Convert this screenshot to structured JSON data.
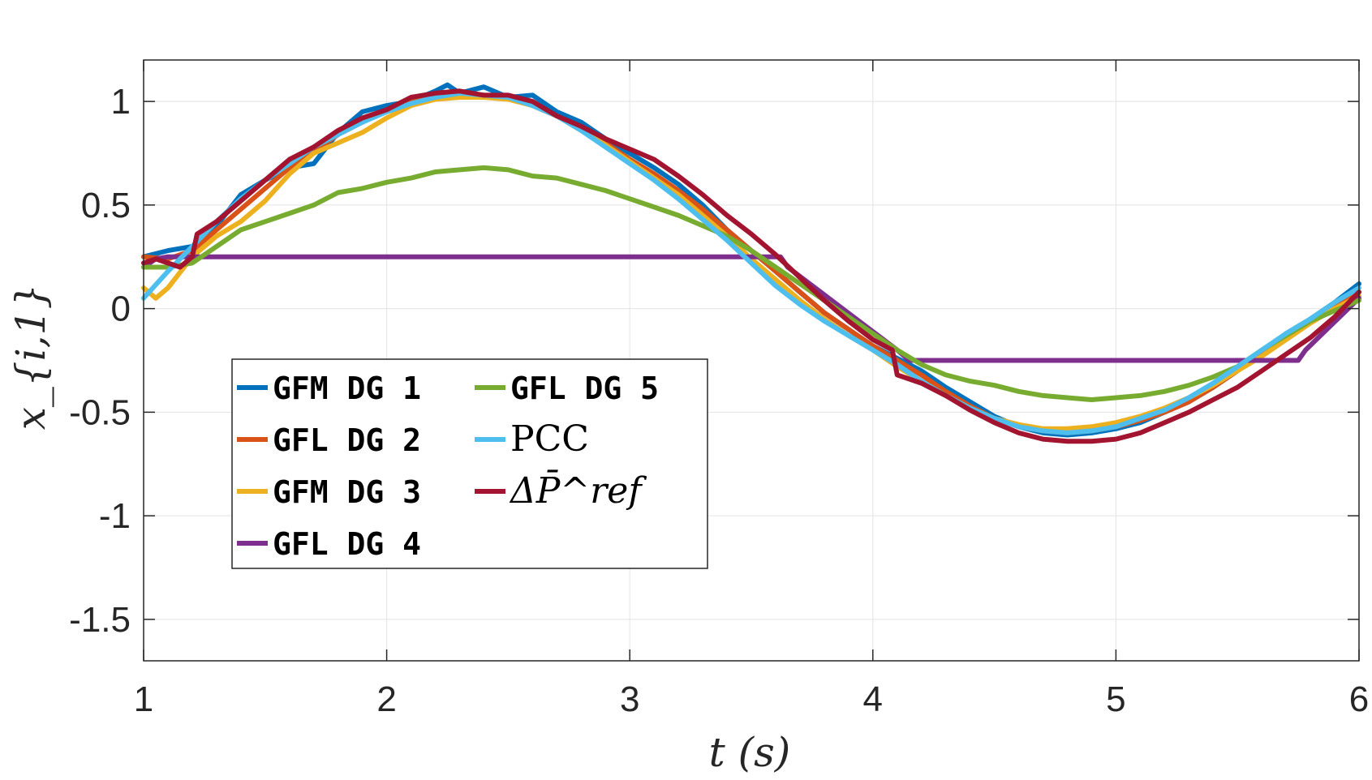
{
  "chart_data": {
    "type": "line",
    "xlabel": "t (s)",
    "ylabel": "x_{i,1}",
    "xlim": [
      1,
      6
    ],
    "ylim": [
      -1.7,
      1.2
    ],
    "xticks": [
      "1",
      "2",
      "3",
      "4",
      "5",
      "6"
    ],
    "yticks": [
      "1",
      "0.5",
      "0",
      "-0.5",
      "-1",
      "-1.5"
    ],
    "grid": true,
    "legend_position": "lower-left inside",
    "series": [
      {
        "name": "GFM DG 1",
        "color": "#0072BD",
        "x": [
          1.0,
          1.1,
          1.2,
          1.3,
          1.4,
          1.5,
          1.6,
          1.7,
          1.8,
          1.9,
          2.0,
          2.1,
          2.2,
          2.25,
          2.3,
          2.4,
          2.5,
          2.6,
          2.7,
          2.8,
          2.9,
          3.0,
          3.1,
          3.2,
          3.3,
          3.4,
          3.5,
          3.6,
          3.7,
          3.8,
          3.9,
          4.0,
          4.1,
          4.2,
          4.3,
          4.4,
          4.5,
          4.6,
          4.7,
          4.8,
          4.9,
          5.0,
          5.1,
          5.2,
          5.3,
          5.4,
          5.5,
          5.6,
          5.7,
          5.8,
          5.9,
          6.0
        ],
        "y": [
          0.25,
          0.28,
          0.3,
          0.4,
          0.55,
          0.62,
          0.68,
          0.7,
          0.85,
          0.95,
          0.98,
          1.0,
          1.05,
          1.08,
          1.04,
          1.07,
          1.02,
          1.03,
          0.95,
          0.9,
          0.82,
          0.75,
          0.68,
          0.6,
          0.5,
          0.38,
          0.28,
          0.18,
          0.08,
          -0.02,
          -0.1,
          -0.18,
          -0.24,
          -0.3,
          -0.38,
          -0.45,
          -0.52,
          -0.57,
          -0.6,
          -0.61,
          -0.6,
          -0.58,
          -0.55,
          -0.5,
          -0.45,
          -0.38,
          -0.3,
          -0.22,
          -0.12,
          -0.05,
          0.03,
          0.12
        ]
      },
      {
        "name": "GFL DG 2",
        "color": "#D95319",
        "x": [
          1.0,
          1.1,
          1.2,
          1.3,
          1.4,
          1.5,
          1.6,
          1.7,
          1.8,
          1.9,
          2.0,
          2.1,
          2.2,
          2.3,
          2.4,
          2.5,
          2.6,
          2.7,
          2.8,
          2.9,
          3.0,
          3.1,
          3.2,
          3.3,
          3.4,
          3.5,
          3.6,
          3.7,
          3.8,
          3.9,
          4.0,
          4.1,
          4.2,
          4.3,
          4.4,
          4.5,
          4.6,
          4.7,
          4.8,
          4.9,
          5.0,
          5.1,
          5.2,
          5.3,
          5.4,
          5.5,
          5.6,
          5.7,
          5.8,
          5.9,
          6.0
        ],
        "y": [
          0.25,
          0.24,
          0.28,
          0.38,
          0.48,
          0.58,
          0.68,
          0.76,
          0.84,
          0.9,
          0.96,
          1.0,
          1.02,
          1.03,
          1.03,
          1.02,
          0.98,
          0.93,
          0.87,
          0.8,
          0.72,
          0.65,
          0.57,
          0.48,
          0.38,
          0.28,
          0.18,
          0.08,
          -0.02,
          -0.1,
          -0.18,
          -0.25,
          -0.32,
          -0.4,
          -0.47,
          -0.53,
          -0.57,
          -0.59,
          -0.6,
          -0.59,
          -0.57,
          -0.54,
          -0.5,
          -0.45,
          -0.38,
          -0.3,
          -0.22,
          -0.14,
          -0.06,
          0.02,
          0.08
        ]
      },
      {
        "name": "GFM DG 3",
        "color": "#EDB120",
        "x": [
          1.0,
          1.05,
          1.1,
          1.2,
          1.3,
          1.4,
          1.5,
          1.6,
          1.7,
          1.8,
          1.9,
          2.0,
          2.1,
          2.2,
          2.3,
          2.4,
          2.5,
          2.6,
          2.7,
          2.8,
          2.9,
          3.0,
          3.1,
          3.2,
          3.3,
          3.4,
          3.5,
          3.6,
          3.7,
          3.8,
          3.9,
          4.0,
          4.1,
          4.2,
          4.3,
          4.4,
          4.5,
          4.6,
          4.7,
          4.8,
          4.9,
          5.0,
          5.1,
          5.2,
          5.3,
          5.4,
          5.5,
          5.6,
          5.7,
          5.8,
          5.9,
          6.0
        ],
        "y": [
          0.1,
          0.05,
          0.1,
          0.25,
          0.35,
          0.42,
          0.52,
          0.65,
          0.75,
          0.8,
          0.85,
          0.92,
          0.98,
          1.01,
          1.02,
          1.02,
          1.01,
          0.98,
          0.93,
          0.86,
          0.79,
          0.71,
          0.63,
          0.55,
          0.45,
          0.35,
          0.24,
          0.14,
          0.04,
          -0.05,
          -0.13,
          -0.2,
          -0.28,
          -0.35,
          -0.42,
          -0.48,
          -0.53,
          -0.56,
          -0.58,
          -0.58,
          -0.57,
          -0.55,
          -0.52,
          -0.48,
          -0.43,
          -0.37,
          -0.3,
          -0.23,
          -0.15,
          -0.07,
          0.0,
          0.06
        ]
      },
      {
        "name": "GFL DG 4",
        "color": "#7E2F8E",
        "x": [
          1.0,
          1.05,
          1.1,
          3.62,
          3.65,
          4.1,
          4.15,
          5.75,
          5.78,
          6.0
        ],
        "y": [
          0.2,
          0.24,
          0.25,
          0.25,
          0.2,
          -0.2,
          -0.25,
          -0.25,
          -0.2,
          0.05
        ]
      },
      {
        "name": "GFL DG 5",
        "color": "#77AC30",
        "x": [
          1.0,
          1.1,
          1.2,
          1.3,
          1.4,
          1.5,
          1.6,
          1.7,
          1.8,
          1.9,
          2.0,
          2.1,
          2.2,
          2.3,
          2.4,
          2.5,
          2.6,
          2.7,
          2.8,
          2.9,
          3.0,
          3.1,
          3.2,
          3.3,
          3.4,
          3.5,
          3.6,
          3.7,
          3.8,
          3.9,
          4.0,
          4.1,
          4.2,
          4.3,
          4.4,
          4.5,
          4.6,
          4.7,
          4.8,
          4.9,
          5.0,
          5.1,
          5.2,
          5.3,
          5.4,
          5.5,
          5.6,
          5.7,
          5.8,
          5.9,
          6.0
        ],
        "y": [
          0.2,
          0.2,
          0.22,
          0.3,
          0.38,
          0.42,
          0.46,
          0.5,
          0.56,
          0.58,
          0.61,
          0.63,
          0.66,
          0.67,
          0.68,
          0.67,
          0.64,
          0.63,
          0.6,
          0.57,
          0.53,
          0.49,
          0.45,
          0.4,
          0.35,
          0.28,
          0.2,
          0.12,
          0.04,
          -0.04,
          -0.12,
          -0.2,
          -0.27,
          -0.32,
          -0.35,
          -0.37,
          -0.4,
          -0.42,
          -0.43,
          -0.44,
          -0.43,
          -0.42,
          -0.4,
          -0.37,
          -0.33,
          -0.28,
          -0.2,
          -0.13,
          -0.06,
          -0.01,
          0.04
        ]
      },
      {
        "name": "PCC",
        "color": "#4DBEEE",
        "x": [
          1.0,
          1.1,
          1.2,
          1.3,
          1.4,
          1.5,
          1.6,
          1.7,
          1.8,
          1.9,
          2.0,
          2.1,
          2.2,
          2.3,
          2.4,
          2.5,
          2.6,
          2.7,
          2.8,
          2.9,
          3.0,
          3.1,
          3.2,
          3.3,
          3.4,
          3.5,
          3.6,
          3.7,
          3.8,
          3.9,
          4.0,
          4.1,
          4.2,
          4.3,
          4.4,
          4.5,
          4.6,
          4.7,
          4.8,
          4.9,
          5.0,
          5.1,
          5.2,
          5.3,
          5.4,
          5.5,
          5.6,
          5.7,
          5.8,
          5.9,
          6.0
        ],
        "y": [
          0.05,
          0.18,
          0.3,
          0.42,
          0.53,
          0.62,
          0.7,
          0.78,
          0.84,
          0.9,
          0.95,
          0.99,
          1.02,
          1.04,
          1.03,
          1.02,
          0.98,
          0.93,
          0.86,
          0.78,
          0.7,
          0.62,
          0.53,
          0.43,
          0.33,
          0.22,
          0.11,
          0.02,
          -0.06,
          -0.13,
          -0.2,
          -0.27,
          -0.35,
          -0.42,
          -0.48,
          -0.53,
          -0.57,
          -0.59,
          -0.6,
          -0.59,
          -0.57,
          -0.53,
          -0.49,
          -0.43,
          -0.36,
          -0.28,
          -0.2,
          -0.12,
          -0.05,
          0.03,
          0.1
        ]
      },
      {
        "name": "ΔP̄^ref",
        "color": "#A2142F",
        "x": [
          1.0,
          1.05,
          1.1,
          1.15,
          1.2,
          1.22,
          1.3,
          1.4,
          1.5,
          1.6,
          1.7,
          1.8,
          1.9,
          2.0,
          2.1,
          2.2,
          2.3,
          2.4,
          2.5,
          2.6,
          2.7,
          2.8,
          2.9,
          3.0,
          3.1,
          3.2,
          3.3,
          3.4,
          3.5,
          3.6,
          3.7,
          3.8,
          3.9,
          4.0,
          4.08,
          4.1,
          4.2,
          4.3,
          4.4,
          4.5,
          4.6,
          4.7,
          4.8,
          4.9,
          5.0,
          5.1,
          5.2,
          5.3,
          5.4,
          5.5,
          5.6,
          5.7,
          5.8,
          5.9,
          6.0
        ],
        "y": [
          0.22,
          0.24,
          0.22,
          0.2,
          0.25,
          0.36,
          0.42,
          0.52,
          0.62,
          0.72,
          0.78,
          0.86,
          0.92,
          0.96,
          1.02,
          1.04,
          1.05,
          1.03,
          1.03,
          1.0,
          0.93,
          0.88,
          0.82,
          0.77,
          0.72,
          0.64,
          0.55,
          0.45,
          0.36,
          0.26,
          0.15,
          0.04,
          -0.06,
          -0.15,
          -0.2,
          -0.32,
          -0.36,
          -0.42,
          -0.49,
          -0.55,
          -0.6,
          -0.63,
          -0.64,
          -0.64,
          -0.63,
          -0.6,
          -0.55,
          -0.5,
          -0.44,
          -0.38,
          -0.3,
          -0.22,
          -0.14,
          -0.04,
          0.08
        ]
      }
    ]
  }
}
